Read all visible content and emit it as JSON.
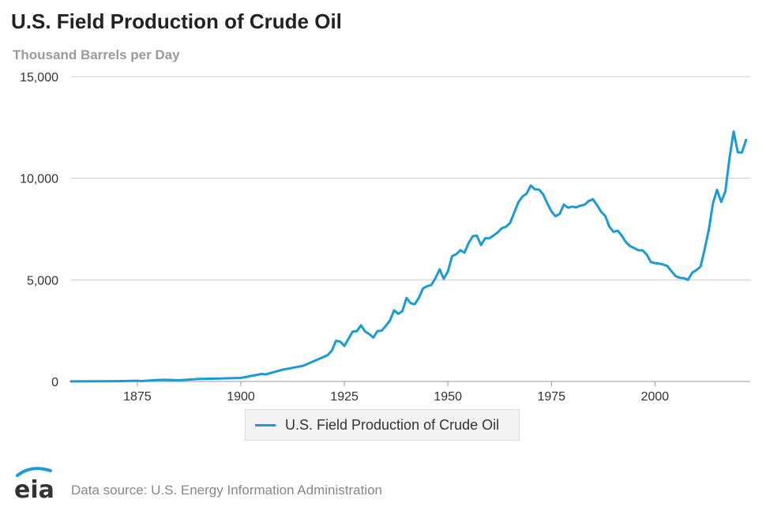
{
  "header": {
    "title": "U.S. Field Production of Crude Oil",
    "subtitle": "Thousand Barrels per Day"
  },
  "footer": {
    "logo_text": "eia",
    "source": "Data source: U.S. Energy Information Administration"
  },
  "colors": {
    "line": "#1a9bd6",
    "grid": "#cccccc",
    "axis_text": "#333333"
  },
  "chart_data": {
    "type": "line",
    "title": "U.S. Field Production of Crude Oil",
    "subtitle": "Thousand Barrels per Day",
    "xlim": [
      1859,
      2023
    ],
    "ylim": [
      0,
      15000
    ],
    "x_ticks": [
      1875,
      1900,
      1925,
      1950,
      1975,
      2000
    ],
    "y_ticks": [
      0,
      5000,
      10000,
      15000
    ],
    "y_tick_labels": [
      "0",
      "5,000",
      "10,000",
      "15,000"
    ],
    "grid": "horizontal",
    "legend": "bottom-center",
    "series": [
      {
        "name": "U.S. Field Production of Crude Oil",
        "color": "#1a9bd6",
        "points": [
          [
            1859,
            5
          ],
          [
            1865,
            7
          ],
          [
            1870,
            14
          ],
          [
            1875,
            34
          ],
          [
            1876,
            20
          ],
          [
            1880,
            72
          ],
          [
            1882,
            83
          ],
          [
            1885,
            60
          ],
          [
            1890,
            125
          ],
          [
            1895,
            145
          ],
          [
            1900,
            174
          ],
          [
            1905,
            369
          ],
          [
            1906,
            345
          ],
          [
            1910,
            574
          ],
          [
            1915,
            770
          ],
          [
            1920,
            1210
          ],
          [
            1921,
            1300
          ],
          [
            1922,
            1530
          ],
          [
            1923,
            2010
          ],
          [
            1924,
            1960
          ],
          [
            1925,
            1750
          ],
          [
            1926,
            2100
          ],
          [
            1927,
            2460
          ],
          [
            1928,
            2470
          ],
          [
            1929,
            2760
          ],
          [
            1930,
            2460
          ],
          [
            1931,
            2330
          ],
          [
            1932,
            2160
          ],
          [
            1933,
            2480
          ],
          [
            1934,
            2500
          ],
          [
            1935,
            2730
          ],
          [
            1936,
            3000
          ],
          [
            1937,
            3500
          ],
          [
            1938,
            3330
          ],
          [
            1939,
            3460
          ],
          [
            1940,
            4110
          ],
          [
            1941,
            3850
          ],
          [
            1942,
            3800
          ],
          [
            1943,
            4120
          ],
          [
            1944,
            4580
          ],
          [
            1945,
            4690
          ],
          [
            1946,
            4750
          ],
          [
            1947,
            5090
          ],
          [
            1948,
            5520
          ],
          [
            1949,
            5050
          ],
          [
            1950,
            5410
          ],
          [
            1951,
            6160
          ],
          [
            1952,
            6260
          ],
          [
            1953,
            6460
          ],
          [
            1954,
            6340
          ],
          [
            1955,
            6810
          ],
          [
            1956,
            7150
          ],
          [
            1957,
            7170
          ],
          [
            1958,
            6710
          ],
          [
            1959,
            7050
          ],
          [
            1960,
            7040
          ],
          [
            1961,
            7180
          ],
          [
            1962,
            7330
          ],
          [
            1963,
            7540
          ],
          [
            1964,
            7610
          ],
          [
            1965,
            7800
          ],
          [
            1966,
            8300
          ],
          [
            1967,
            8810
          ],
          [
            1968,
            9100
          ],
          [
            1969,
            9240
          ],
          [
            1970,
            9640
          ],
          [
            1971,
            9460
          ],
          [
            1972,
            9440
          ],
          [
            1973,
            9210
          ],
          [
            1974,
            8770
          ],
          [
            1975,
            8370
          ],
          [
            1976,
            8130
          ],
          [
            1977,
            8250
          ],
          [
            1978,
            8710
          ],
          [
            1979,
            8550
          ],
          [
            1980,
            8600
          ],
          [
            1981,
            8570
          ],
          [
            1982,
            8650
          ],
          [
            1983,
            8690
          ],
          [
            1984,
            8880
          ],
          [
            1985,
            8970
          ],
          [
            1986,
            8680
          ],
          [
            1987,
            8350
          ],
          [
            1988,
            8140
          ],
          [
            1989,
            7610
          ],
          [
            1990,
            7360
          ],
          [
            1991,
            7420
          ],
          [
            1992,
            7170
          ],
          [
            1993,
            6850
          ],
          [
            1994,
            6660
          ],
          [
            1995,
            6560
          ],
          [
            1996,
            6460
          ],
          [
            1997,
            6450
          ],
          [
            1998,
            6250
          ],
          [
            1999,
            5880
          ],
          [
            2000,
            5820
          ],
          [
            2001,
            5800
          ],
          [
            2002,
            5750
          ],
          [
            2003,
            5680
          ],
          [
            2004,
            5420
          ],
          [
            2005,
            5180
          ],
          [
            2006,
            5100
          ],
          [
            2007,
            5080
          ],
          [
            2008,
            5000
          ],
          [
            2009,
            5350
          ],
          [
            2010,
            5480
          ],
          [
            2011,
            5650
          ],
          [
            2012,
            6500
          ],
          [
            2013,
            7470
          ],
          [
            2014,
            8760
          ],
          [
            2015,
            9430
          ],
          [
            2016,
            8830
          ],
          [
            2017,
            9350
          ],
          [
            2018,
            10990
          ],
          [
            2019,
            12300
          ],
          [
            2020,
            11280
          ],
          [
            2021,
            11260
          ],
          [
            2022,
            11890
          ]
        ]
      }
    ]
  }
}
